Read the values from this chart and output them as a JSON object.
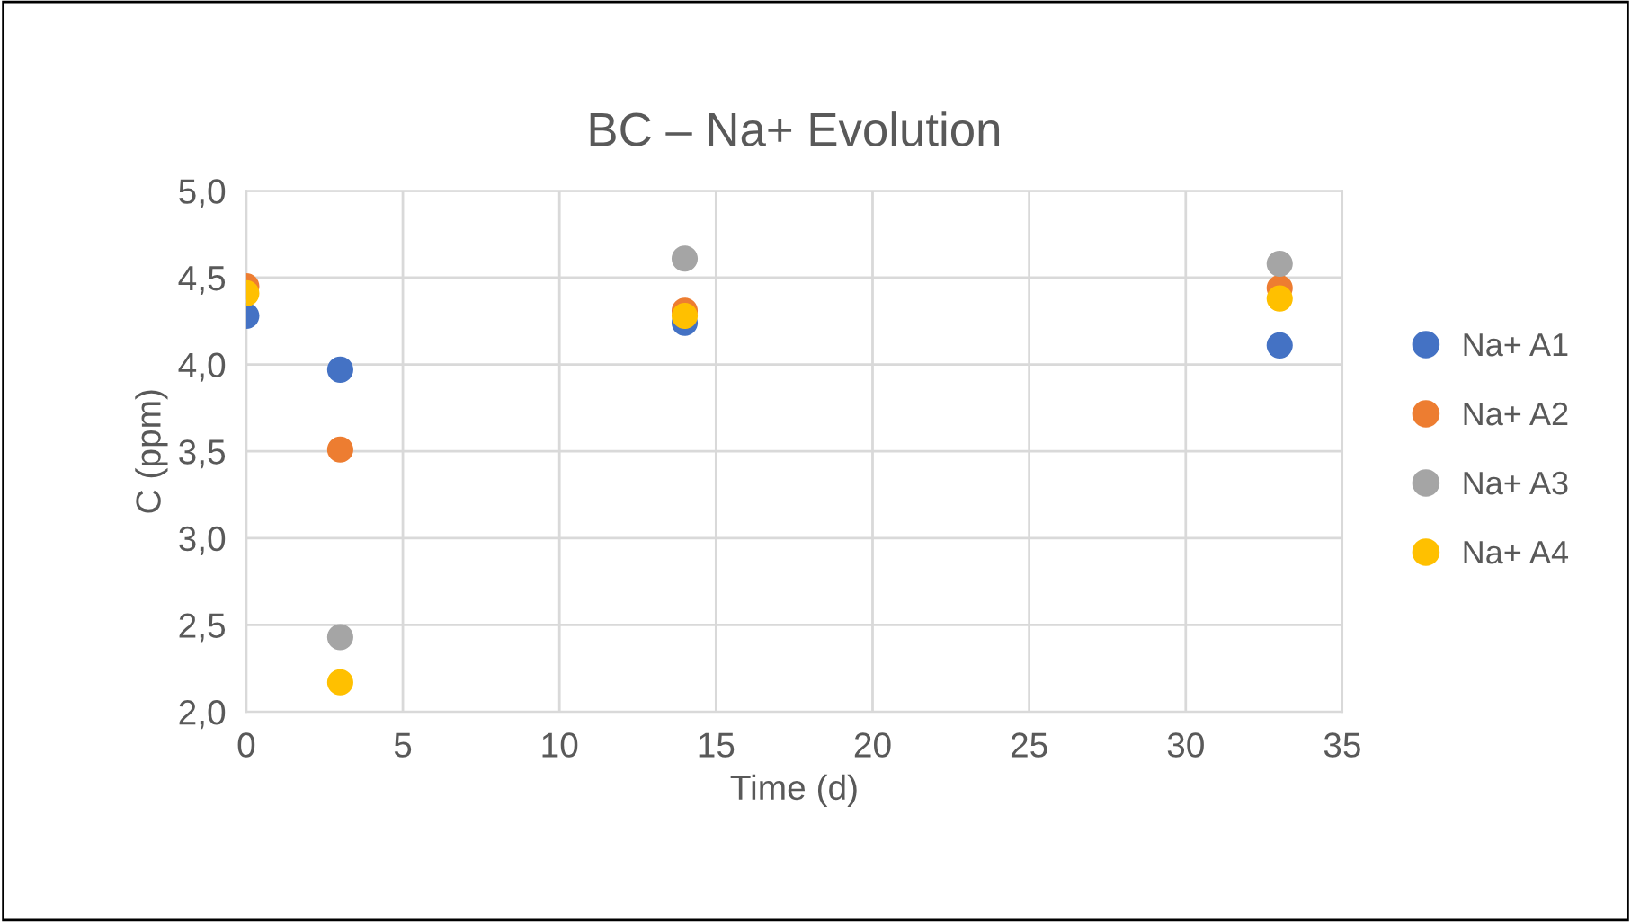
{
  "chart_data": {
    "type": "scatter",
    "title": "BC – Na+ Evolution",
    "xlabel": "Time (d)",
    "ylabel": "C (ppm)",
    "x": [
      0,
      3,
      14,
      33
    ],
    "series": [
      {
        "name": "Na+ A1",
        "color": "#4472c4",
        "values": [
          4.28,
          3.97,
          4.24,
          4.11
        ]
      },
      {
        "name": "Na+ A2",
        "color": "#ed7d31",
        "values": [
          4.45,
          3.51,
          4.31,
          4.44
        ]
      },
      {
        "name": "Na+ A3",
        "color": "#a5a5a5",
        "values": [
          null,
          2.43,
          4.61,
          4.58
        ]
      },
      {
        "name": "Na+ A4",
        "color": "#ffc000",
        "values": [
          4.41,
          2.17,
          4.28,
          4.38
        ]
      }
    ],
    "xlim": [
      0,
      35
    ],
    "xticks": [
      0,
      5,
      10,
      15,
      20,
      25,
      30,
      35
    ],
    "ylim": [
      2.0,
      5.0
    ],
    "yticks": [
      {
        "value": 2.0,
        "label": "2,0"
      },
      {
        "value": 2.5,
        "label": "2,5"
      },
      {
        "value": 3.0,
        "label": "3,0"
      },
      {
        "value": 3.5,
        "label": "3,5"
      },
      {
        "value": 4.0,
        "label": "4,0"
      },
      {
        "value": 4.5,
        "label": "4,5"
      },
      {
        "value": 5.0,
        "label": "5,0"
      }
    ],
    "grid": true,
    "legend": "right",
    "marker": "circle"
  }
}
